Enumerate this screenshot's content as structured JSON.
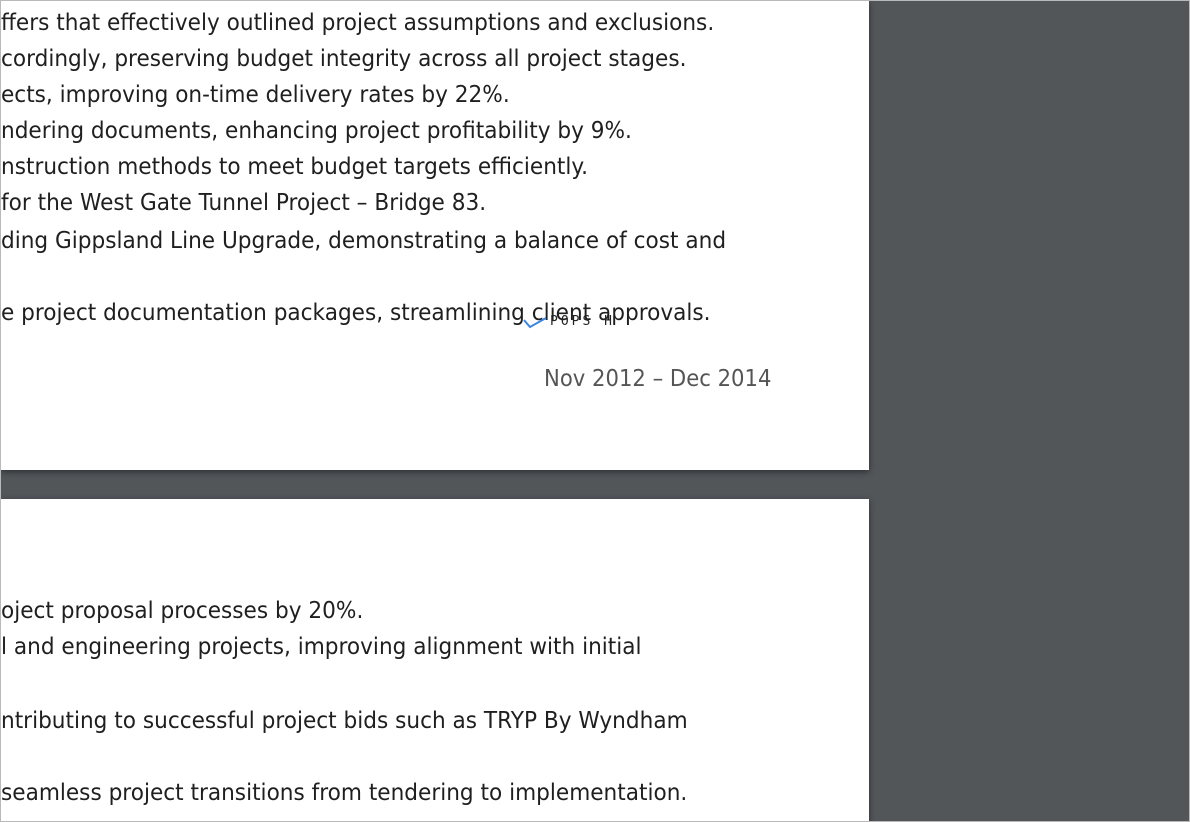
{
  "page1": {
    "lines": [
      "ffers that effectively outlined project assumptions and exclusions.",
      "cordingly, preserving budget integrity across all project stages.",
      "ects, improving on-time delivery rates by 22%.",
      "ndering documents, enhancing project profitability by 9%.",
      "nstruction methods to meet budget targets efficiently.",
      "for the West Gate Tunnel Project – Bridge 83.",
      "ding Gippsland Line Upgrade, demonstrating a balance of cost and",
      "e project documentation packages, streamlining client approvals."
    ],
    "date_range": "Nov 2012 – Dec 2014",
    "stamp_text": "POPS H"
  },
  "page2": {
    "lines": [
      "oject proposal processes by 20%.",
      "l and engineering projects, improving alignment with initial",
      "ntributing to successful project bids such as TRYP By Wyndham",
      "seamless project transitions from tendering to implementation."
    ]
  },
  "colors": {
    "viewer_background": "#525659",
    "page_background": "#ffffff",
    "body_text": "#1f1f1f",
    "date_text": "#555555",
    "stamp_accent": "#3a86e0"
  }
}
